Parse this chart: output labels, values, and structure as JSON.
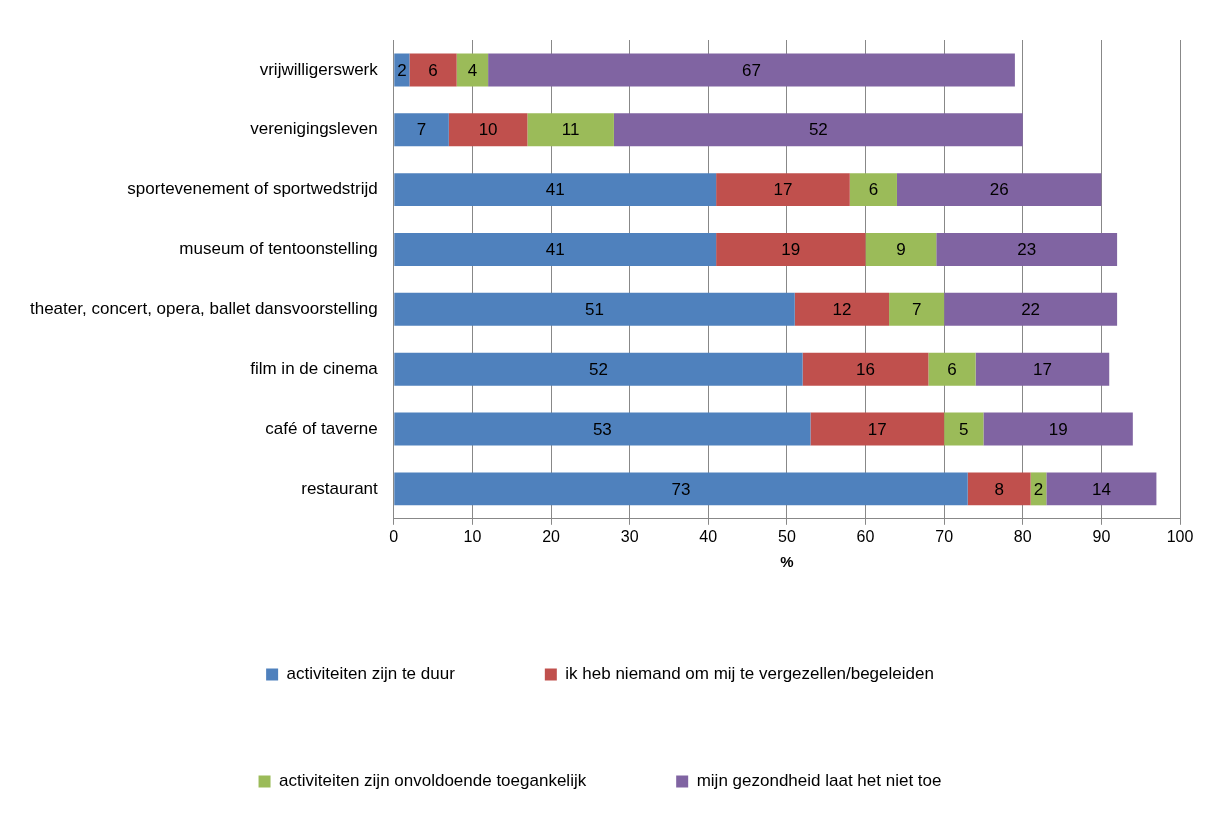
{
  "chart_data": {
    "type": "bar",
    "orientation": "horizontal",
    "stacked": true,
    "xlabel": "%",
    "categories": [
      "vrijwilligerswerk",
      "verenigingsleven",
      "sportevenement of sportwedstrijd",
      "museum of tentoonstelling",
      "theater, concert, opera, ballet dansvoorstelling",
      "film in de cinema",
      "café of taverne",
      "restaurant"
    ],
    "series": [
      {
        "name": "activiteiten zijn te duur",
        "color": "#4f81bd",
        "values": [
          2,
          7,
          41,
          41,
          51,
          52,
          53,
          73
        ]
      },
      {
        "name": "ik heb niemand om mij te vergezellen/begeleiden",
        "color": "#c0504d",
        "values": [
          6,
          10,
          17,
          19,
          12,
          16,
          17,
          8
        ]
      },
      {
        "name": "activiteiten zijn onvoldoende toegankelijk",
        "color": "#9bbb59",
        "values": [
          4,
          11,
          6,
          9,
          7,
          6,
          5,
          2
        ]
      },
      {
        "name": "mijn gezondheid laat het niet toe",
        "color": "#8064a2",
        "values": [
          67,
          52,
          26,
          23,
          22,
          17,
          19,
          14
        ]
      }
    ],
    "xlim": [
      0,
      100
    ],
    "xticks": [
      0,
      10,
      20,
      30,
      40,
      50,
      60,
      70,
      80,
      90,
      100
    ],
    "grid": "x",
    "legend": "bottom",
    "data_labels": true
  }
}
